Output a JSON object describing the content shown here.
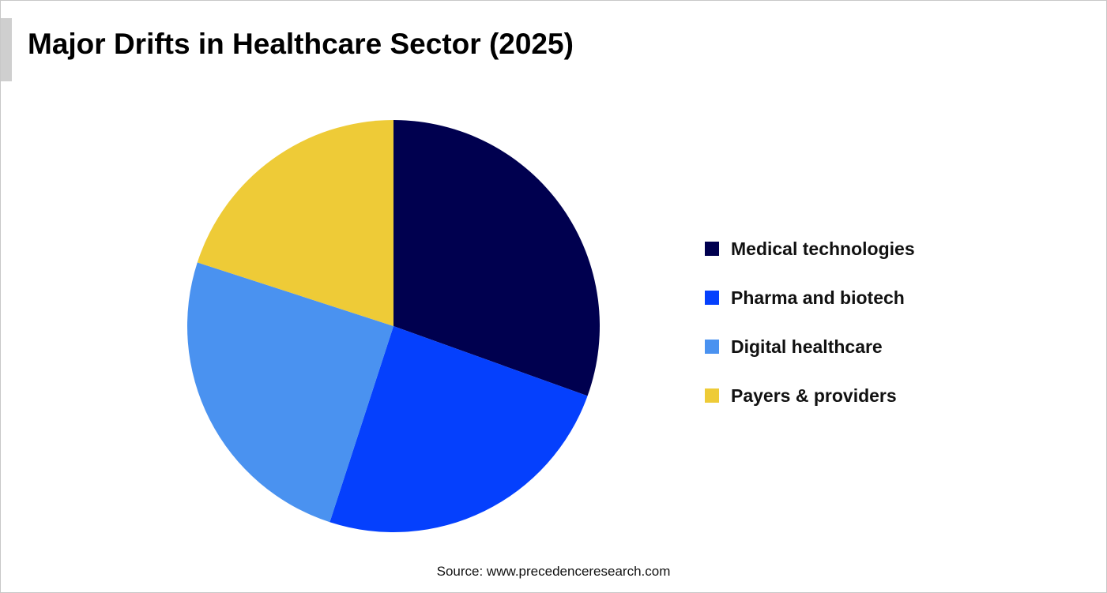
{
  "chart_data": {
    "type": "pie",
    "title": "Major Drifts in Healthcare Sector (2025)",
    "slices": [
      {
        "label": "Medical technologies",
        "value": 30.5,
        "color": "#00004f"
      },
      {
        "label": "Pharma and biotech",
        "value": 24.5,
        "color": "#0540fd"
      },
      {
        "label": "Digital healthcare",
        "value": 25,
        "color": "#4a92f0"
      },
      {
        "label": "Payers & providers",
        "value": 20,
        "color": "#eecb37"
      }
    ],
    "legend_position": "right"
  },
  "source": "Source: www.precedenceresearch.com"
}
